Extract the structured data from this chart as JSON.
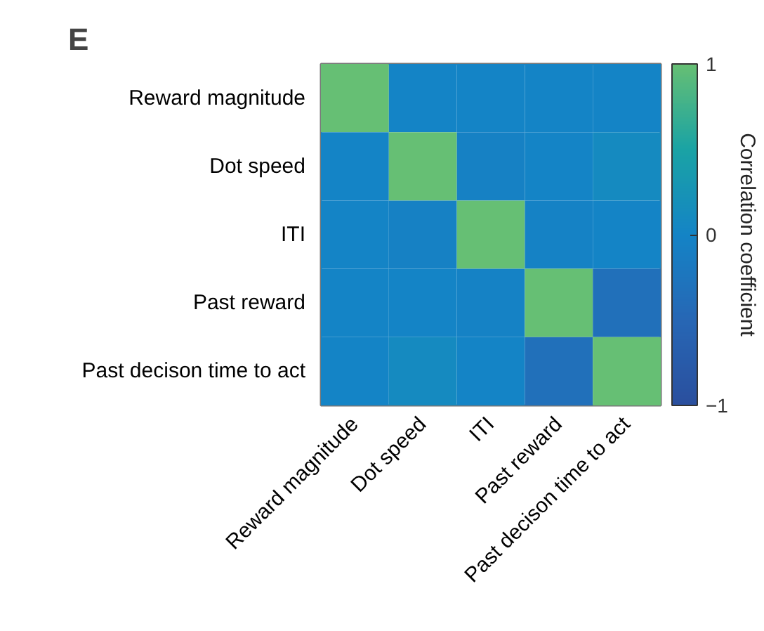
{
  "chart_data": {
    "type": "heatmap",
    "title": "E",
    "categories": [
      "Reward magnitude",
      "Dot speed",
      "ITI",
      "Past reward",
      "Past decison time to act"
    ],
    "y_categories": [
      "Reward magnitude",
      "Dot speed",
      "ITI",
      "Past reward",
      "Past decison time to act"
    ],
    "cells": [
      [
        1,
        0,
        0,
        0,
        0
      ],
      [
        0,
        1,
        -0.05,
        0,
        0.1
      ],
      [
        0,
        -0.05,
        1,
        -0.03,
        0
      ],
      [
        0,
        0,
        -0.03,
        1,
        -0.35
      ],
      [
        0,
        0.1,
        0,
        -0.35,
        1
      ]
    ],
    "clim": [
      -1,
      1
    ],
    "cticks": [
      -1,
      0,
      1
    ],
    "clabel": "Correlation coefficient",
    "colors": [
      "#2a4f9e",
      "#2767b5",
      "#1484c6",
      "#1aa3a5",
      "#66bf74"
    ],
    "grid": false
  }
}
